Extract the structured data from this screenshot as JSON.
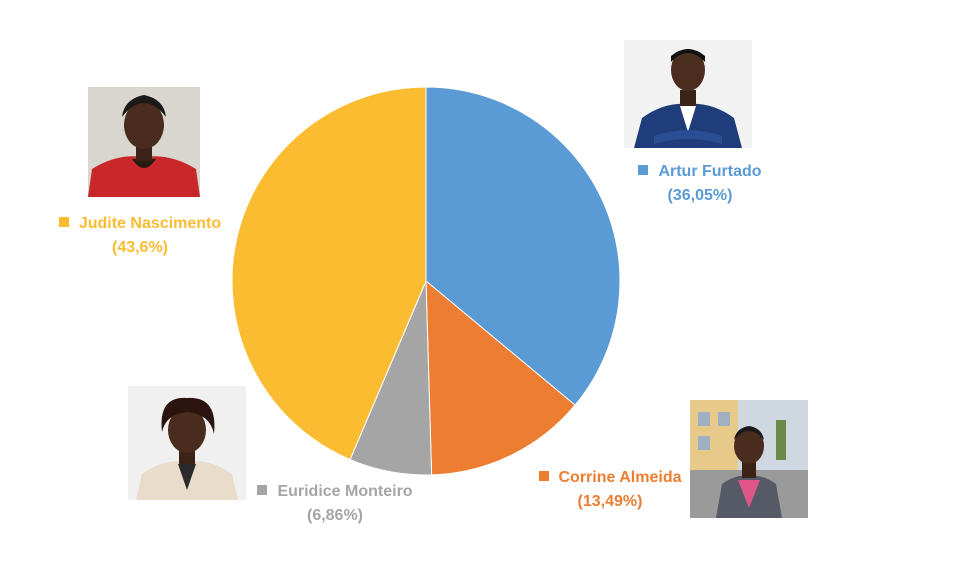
{
  "chart_data": {
    "type": "pie",
    "slices": [
      {
        "name": "Artur Furtado",
        "value": 36.05,
        "value_label": "(36,05%)",
        "color": "#5b9bd5"
      },
      {
        "name": "Corrine Almeida",
        "value": 13.49,
        "value_label": "(13,49%)",
        "color": "#ed7d31"
      },
      {
        "name": "Euridice Monteiro",
        "value": 6.86,
        "value_label": "(6,86%)",
        "color": "#a5a5a5"
      },
      {
        "name": "Judite Nascimento",
        "value": 43.6,
        "value_label": "(43,6%)",
        "color": "#fbbc31"
      }
    ],
    "legend": "labels beside slices with candidate photos"
  },
  "photos": [
    {
      "name": "Artur Furtado",
      "icon": "man-in-suit-portrait"
    },
    {
      "name": "Corrine Almeida",
      "icon": "woman-outdoor-portrait"
    },
    {
      "name": "Euridice Monteiro",
      "icon": "woman-white-blazer-portrait"
    },
    {
      "name": "Judite Nascimento",
      "icon": "woman-red-jacket-portrait"
    }
  ]
}
